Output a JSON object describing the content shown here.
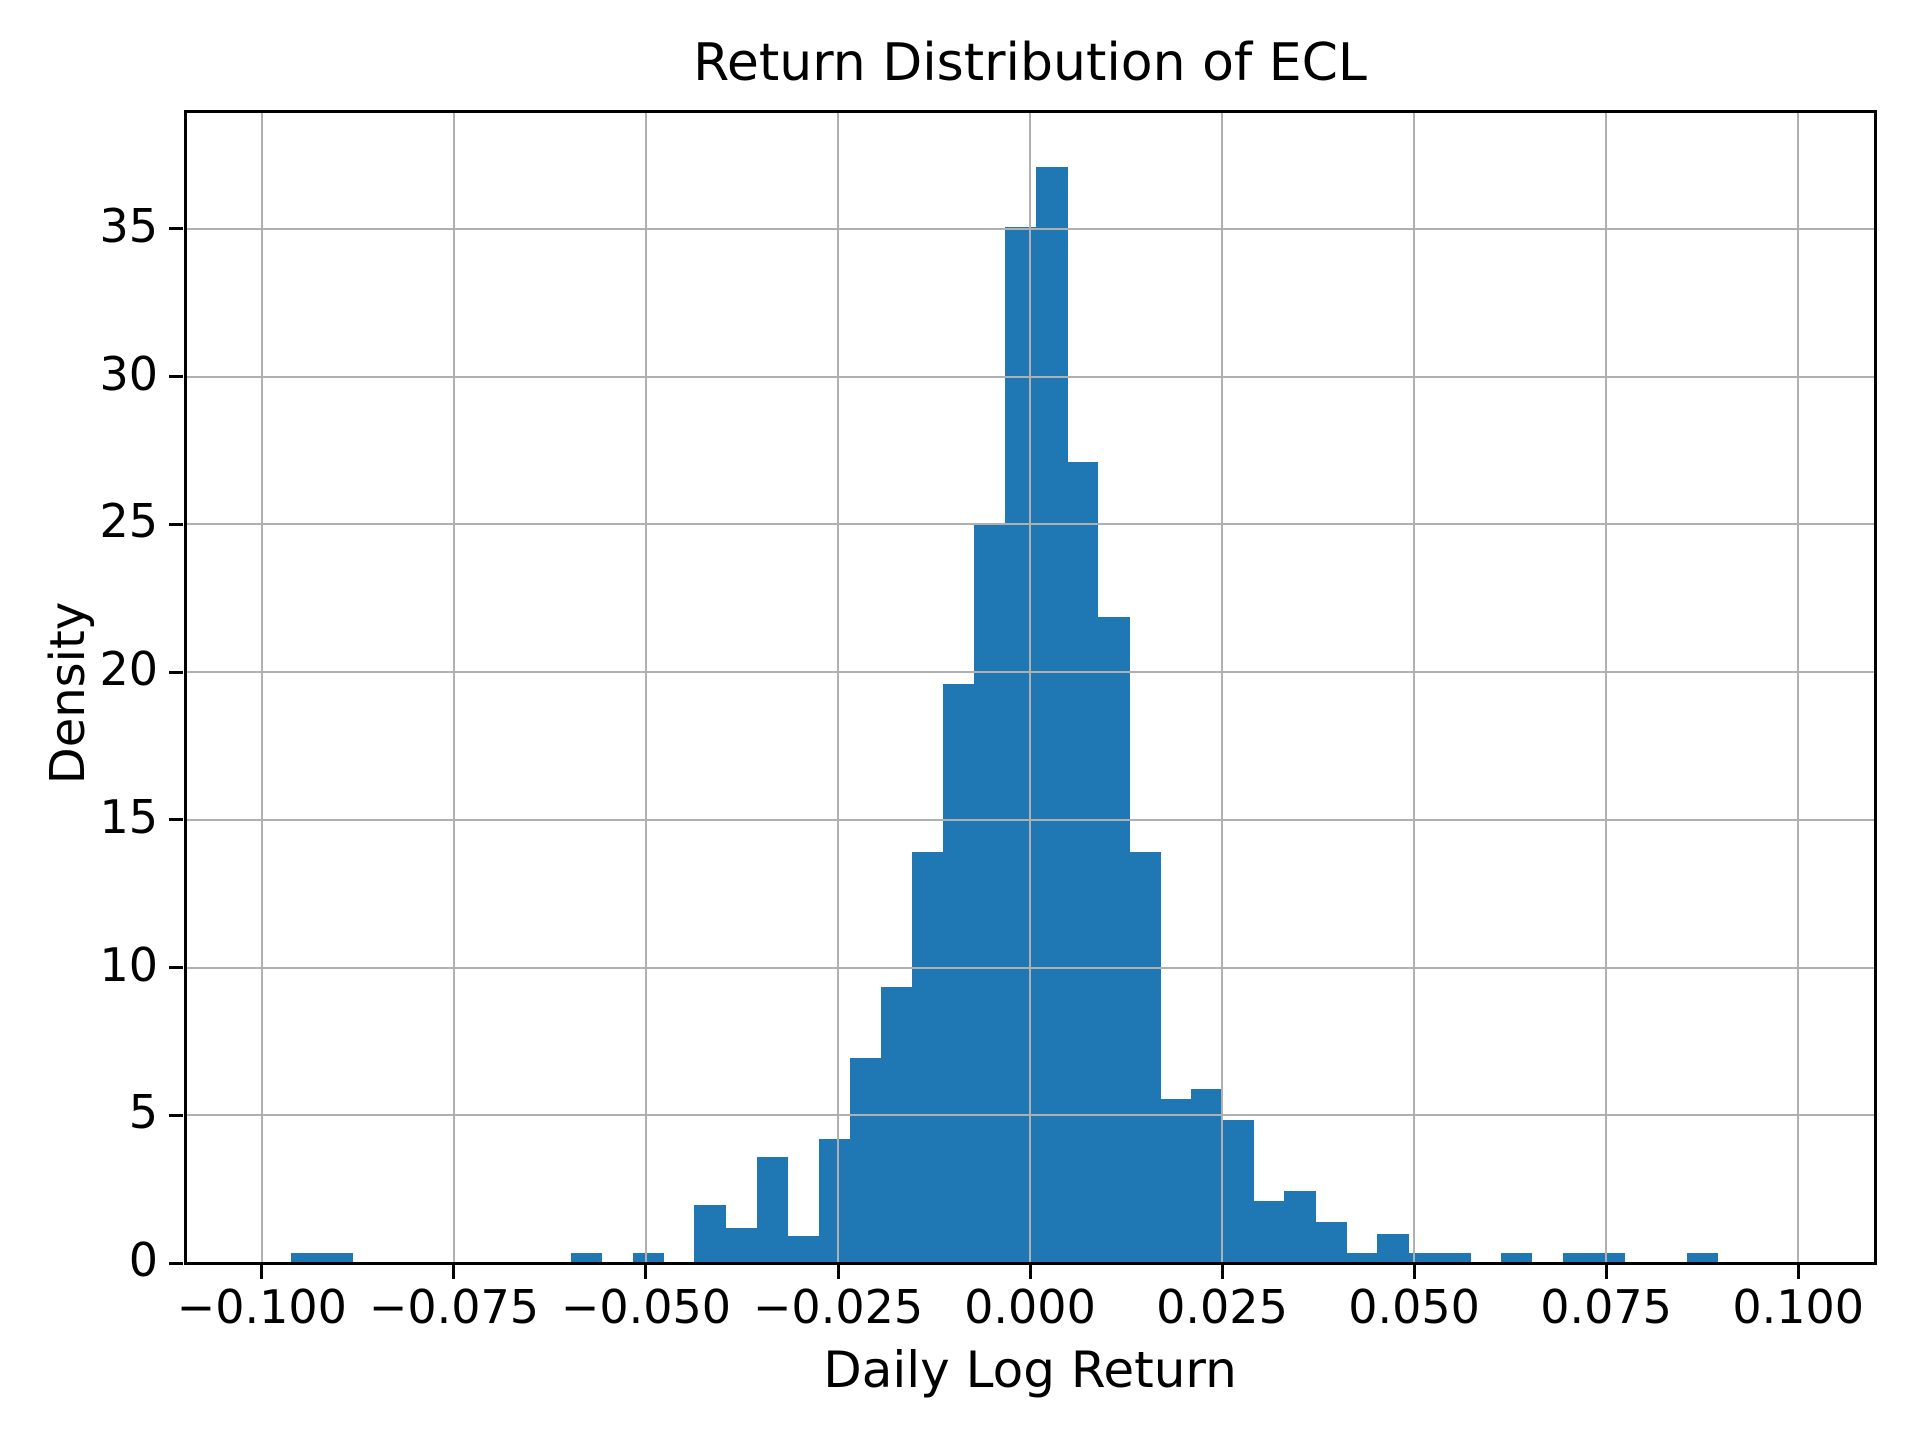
{
  "chart_data": {
    "type": "histogram",
    "title": "Return Distribution of ECL",
    "xlabel": "Daily Log Return",
    "ylabel": "Density",
    "grid": true,
    "legend": null,
    "bar_color": "#1f77b4",
    "grid_color": "#b0b0b0",
    "axis_color": "#000000",
    "background_color": "#ffffff",
    "xlim": [
      -0.11,
      0.11
    ],
    "ylim": [
      0,
      38.99
    ],
    "bin_width": 0.00404,
    "bins": [
      {
        "x": -0.0962,
        "density": 0.35
      },
      {
        "x": -0.0922,
        "density": 0.35
      },
      {
        "x": -0.0598,
        "density": 0.35
      },
      {
        "x": -0.0517,
        "density": 0.35
      },
      {
        "x": -0.0437,
        "density": 1.95
      },
      {
        "x": -0.0396,
        "density": 1.2
      },
      {
        "x": -0.0356,
        "density": 3.6
      },
      {
        "x": -0.0315,
        "density": 0.9
      },
      {
        "x": -0.0275,
        "density": 4.2
      },
      {
        "x": -0.0234,
        "density": 6.95
      },
      {
        "x": -0.0194,
        "density": 9.35
      },
      {
        "x": -0.0154,
        "density": 13.9
      },
      {
        "x": -0.0113,
        "density": 19.6
      },
      {
        "x": -0.0073,
        "density": 25.0
      },
      {
        "x": -0.0032,
        "density": 35.05
      },
      {
        "x": 0.0008,
        "density": 37.1
      },
      {
        "x": 0.0048,
        "density": 27.1
      },
      {
        "x": 0.0089,
        "density": 21.85
      },
      {
        "x": 0.0129,
        "density": 13.9
      },
      {
        "x": 0.017,
        "density": 5.55
      },
      {
        "x": 0.021,
        "density": 5.9
      },
      {
        "x": 0.025,
        "density": 4.85
      },
      {
        "x": 0.0291,
        "density": 2.1
      },
      {
        "x": 0.0331,
        "density": 2.45
      },
      {
        "x": 0.0371,
        "density": 1.4
      },
      {
        "x": 0.0412,
        "density": 0.35
      },
      {
        "x": 0.0452,
        "density": 1.0
      },
      {
        "x": 0.0492,
        "density": 0.35
      },
      {
        "x": 0.0533,
        "density": 0.35
      },
      {
        "x": 0.0613,
        "density": 0.35
      },
      {
        "x": 0.0694,
        "density": 0.35
      },
      {
        "x": 0.0734,
        "density": 0.35
      },
      {
        "x": 0.0855,
        "density": 0.35
      }
    ],
    "xticks": [
      {
        "value": -0.1,
        "label": "−0.100"
      },
      {
        "value": -0.075,
        "label": "−0.075"
      },
      {
        "value": -0.05,
        "label": "−0.050"
      },
      {
        "value": -0.025,
        "label": "−0.025"
      },
      {
        "value": 0.0,
        "label": "0.000"
      },
      {
        "value": 0.025,
        "label": "0.025"
      },
      {
        "value": 0.05,
        "label": "0.050"
      },
      {
        "value": 0.075,
        "label": "0.075"
      },
      {
        "value": 0.1,
        "label": "0.100"
      }
    ],
    "yticks": [
      {
        "value": 0,
        "label": "0"
      },
      {
        "value": 5,
        "label": "5"
      },
      {
        "value": 10,
        "label": "10"
      },
      {
        "value": 15,
        "label": "15"
      },
      {
        "value": 20,
        "label": "20"
      },
      {
        "value": 25,
        "label": "25"
      },
      {
        "value": 30,
        "label": "30"
      },
      {
        "value": 35,
        "label": "35"
      }
    ]
  }
}
